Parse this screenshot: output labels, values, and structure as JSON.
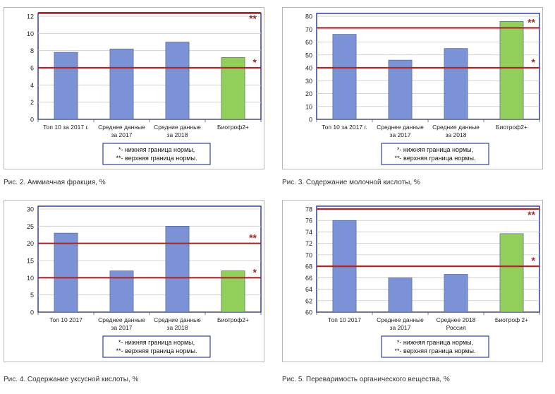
{
  "figures": [
    {
      "caption": "Рис. 2. Аммиачная фракция, %",
      "chart_data": {
        "type": "bar",
        "categories": [
          [
            "Топ 10 за 2017 г."
          ],
          [
            "Среднее данные",
            "за 2017"
          ],
          [
            "Средние данные",
            "за 2018"
          ],
          [
            "Биотроф2+"
          ]
        ],
        "values": [
          7.8,
          8.2,
          9.0,
          7.2
        ],
        "bar_colors": [
          "#7b93d6",
          "#7b93d6",
          "#7b93d6",
          "#92cf5a"
        ],
        "ylim": [
          0,
          12
        ],
        "yticks": [
          0,
          2,
          4,
          6,
          8,
          10,
          12
        ],
        "grid": true,
        "reference_lines": [
          {
            "value": 6,
            "marker": "*",
            "color": "#a52a2a"
          },
          {
            "value": 12.4,
            "marker": "**",
            "color": "#a52a2a"
          }
        ],
        "legend": [
          "*- нижняя граница нормы,",
          "**- верхняя граница нормы."
        ]
      }
    },
    {
      "caption": "Рис. 3. Содержание молочной кислоты, %",
      "chart_data": {
        "type": "bar",
        "categories": [
          [
            "Топ 10 за 2017 г."
          ],
          [
            "Среднее данные",
            "за 2017"
          ],
          [
            "Средние данные",
            "за 2018"
          ],
          [
            "Биотроф2+"
          ]
        ],
        "values": [
          66,
          46,
          55,
          76
        ],
        "bar_colors": [
          "#7b93d6",
          "#7b93d6",
          "#7b93d6",
          "#92cf5a"
        ],
        "ylim": [
          0,
          80
        ],
        "yticks": [
          0,
          10,
          20,
          30,
          40,
          50,
          60,
          70,
          80
        ],
        "grid": true,
        "reference_lines": [
          {
            "value": 40,
            "marker": "*",
            "color": "#a52a2a"
          },
          {
            "value": 71,
            "marker": "**",
            "color": "#a52a2a"
          }
        ],
        "legend": [
          "*- нижняя граница нормы,",
          "**- верхняя граница нормы."
        ]
      }
    },
    {
      "caption": "Рис. 4. Содержание уксусной кислоты, %",
      "chart_data": {
        "type": "bar",
        "categories": [
          [
            "Топ 10 2017"
          ],
          [
            "Среднее данные",
            "за 2017"
          ],
          [
            "Средние данные",
            "за 2018"
          ],
          [
            "Биотроф2+"
          ]
        ],
        "values": [
          23,
          12,
          25,
          12
        ],
        "bar_colors": [
          "#7b93d6",
          "#7b93d6",
          "#7b93d6",
          "#92cf5a"
        ],
        "ylim": [
          0,
          30
        ],
        "yticks": [
          0,
          5,
          10,
          15,
          20,
          25,
          30
        ],
        "grid": true,
        "reference_lines": [
          {
            "value": 10,
            "marker": "*",
            "color": "#a52a2a"
          },
          {
            "value": 20,
            "marker": "**",
            "color": "#a52a2a"
          }
        ],
        "legend": [
          "*- нижняя граница нормы,",
          "**- верхняя граница нормы."
        ]
      }
    },
    {
      "caption": "Рис. 5. Переваримость органического вещества, %",
      "chart_data": {
        "type": "bar",
        "categories": [
          [
            "Топ 10 2017"
          ],
          [
            "Среднее данные",
            "за 2017"
          ],
          [
            "Среднее 2018",
            "Россия"
          ],
          [
            "Биотроф 2+"
          ]
        ],
        "values": [
          76,
          66,
          66.6,
          73.7
        ],
        "bar_colors": [
          "#7b93d6",
          "#7b93d6",
          "#7b93d6",
          "#92cf5a"
        ],
        "ylim": [
          60,
          78
        ],
        "yticks": [
          60,
          62,
          64,
          66,
          68,
          70,
          72,
          74,
          76,
          78
        ],
        "grid": true,
        "reference_lines": [
          {
            "value": 68,
            "marker": "*",
            "color": "#a52a2a"
          },
          {
            "value": 78,
            "marker": "**",
            "color": "#a52a2a"
          }
        ],
        "legend": [
          "*- нижняя граница нормы,",
          "**- верхняя граница нормы."
        ]
      }
    }
  ]
}
